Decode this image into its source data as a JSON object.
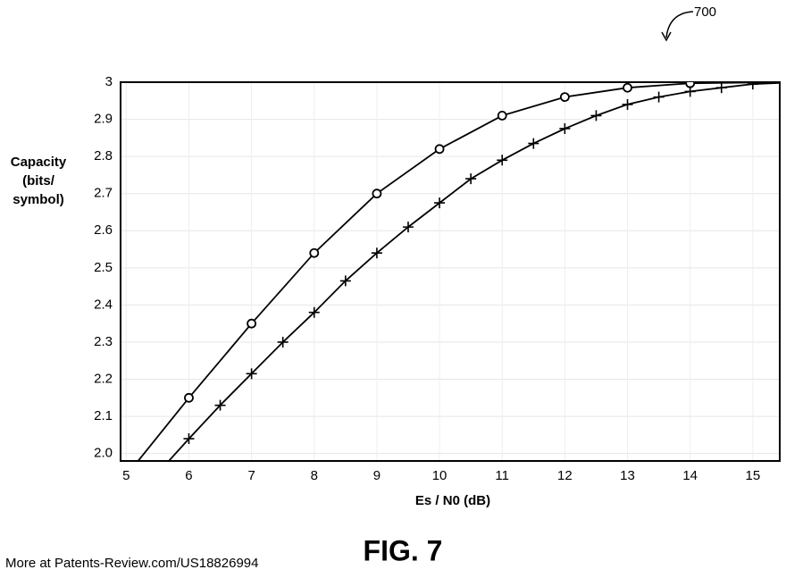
{
  "chart_data": {
    "type": "line",
    "annotation": "700",
    "y_label_lines": [
      "Capacity",
      "(bits/",
      "symbol)"
    ],
    "x_label": "Es / N0 (dB)",
    "caption": "FIG. 7",
    "footer": "More at Patents-Review.com/US18826994",
    "xlim": [
      4.91,
      15.43
    ],
    "ylim": [
      1.98,
      3.0
    ],
    "xticks": [
      5,
      6,
      7,
      8,
      9,
      10,
      11,
      12,
      13,
      14,
      15
    ],
    "yticks": [
      {
        "value": 2,
        "label": "2.0"
      },
      2.1,
      2.2,
      2.3,
      2.4,
      2.5,
      2.6,
      2.7,
      2.8,
      2.9,
      3
    ],
    "grid": true,
    "series": [
      {
        "color": "#000000",
        "marker": "circle",
        "x": [
          6,
          7,
          8,
          9,
          10,
          11,
          12,
          13,
          14
        ],
        "values": [
          2.15,
          2.35,
          2.54,
          2.7,
          2.82,
          2.91,
          2.96,
          2.985,
          2.997
        ],
        "curve_x": [
          5.19,
          6,
          7,
          8,
          9,
          10,
          11,
          12,
          13,
          14,
          15.43
        ],
        "curve_values": [
          1.98,
          2.15,
          2.35,
          2.54,
          2.7,
          2.82,
          2.91,
          2.96,
          2.985,
          2.997,
          3.0
        ]
      },
      {
        "color": "#000000",
        "marker": "plus",
        "x": [
          6,
          6.5,
          7,
          7.5,
          8,
          8.5,
          9,
          9.5,
          10,
          10.5,
          11,
          11.5,
          12,
          12.5,
          13,
          13.5,
          14,
          14.5,
          15
        ],
        "values": [
          2.04,
          2.13,
          2.215,
          2.3,
          2.38,
          2.465,
          2.54,
          2.61,
          2.675,
          2.74,
          2.79,
          2.835,
          2.875,
          2.91,
          2.94,
          2.96,
          2.975,
          2.985,
          2.995
        ],
        "curve_x": [
          5.68,
          6,
          6.5,
          7,
          7.5,
          8,
          8.5,
          9,
          9.5,
          10,
          10.5,
          11,
          11.5,
          12,
          12.5,
          13,
          13.5,
          14,
          14.5,
          15,
          15.43
        ],
        "curve_values": [
          1.98,
          2.04,
          2.13,
          2.215,
          2.3,
          2.38,
          2.465,
          2.54,
          2.61,
          2.675,
          2.74,
          2.79,
          2.835,
          2.875,
          2.91,
          2.94,
          2.96,
          2.975,
          2.985,
          2.995,
          2.998
        ]
      }
    ]
  }
}
